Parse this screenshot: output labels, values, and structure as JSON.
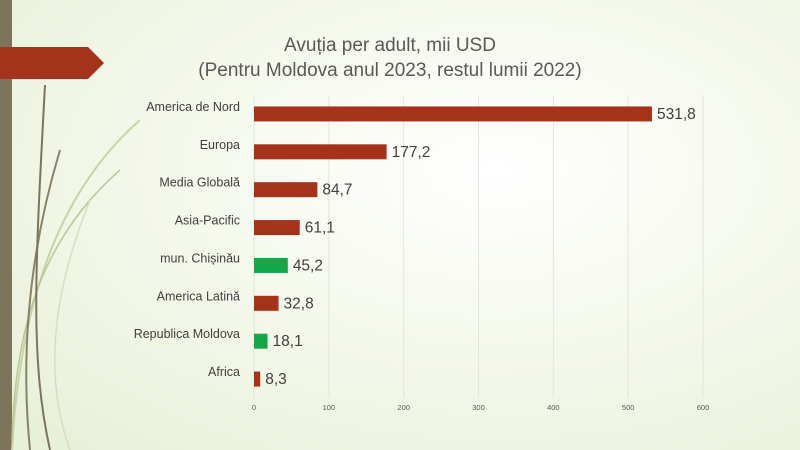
{
  "chart_data": {
    "type": "bar",
    "orientation": "horizontal",
    "title": "Avuția per adult, mii USD",
    "subtitle": "(Pentru Moldova anul 2023, restul lumii 2022)",
    "categories": [
      "America de Nord",
      "Europa",
      "Media Globală",
      "Asia-Pacific",
      "mun. Chișinău",
      "America Latină",
      "Republica Moldova",
      "Africa"
    ],
    "values": [
      531.8,
      177.2,
      84.7,
      61.1,
      45.2,
      32.8,
      18.1,
      8.3
    ],
    "value_labels": [
      "531,8",
      "177,2",
      "84,7",
      "61,1",
      "45,2",
      "32,8",
      "18,1",
      "8,3"
    ],
    "colors": [
      "#a5321a",
      "#a5321a",
      "#a5321a",
      "#a5321a",
      "#14a84a",
      "#a5321a",
      "#14a84a",
      "#a5321a"
    ],
    "xlim": [
      0,
      600
    ],
    "xticks": [
      0,
      100,
      200,
      300,
      400,
      500,
      600
    ],
    "grid": true,
    "legend": "none"
  }
}
